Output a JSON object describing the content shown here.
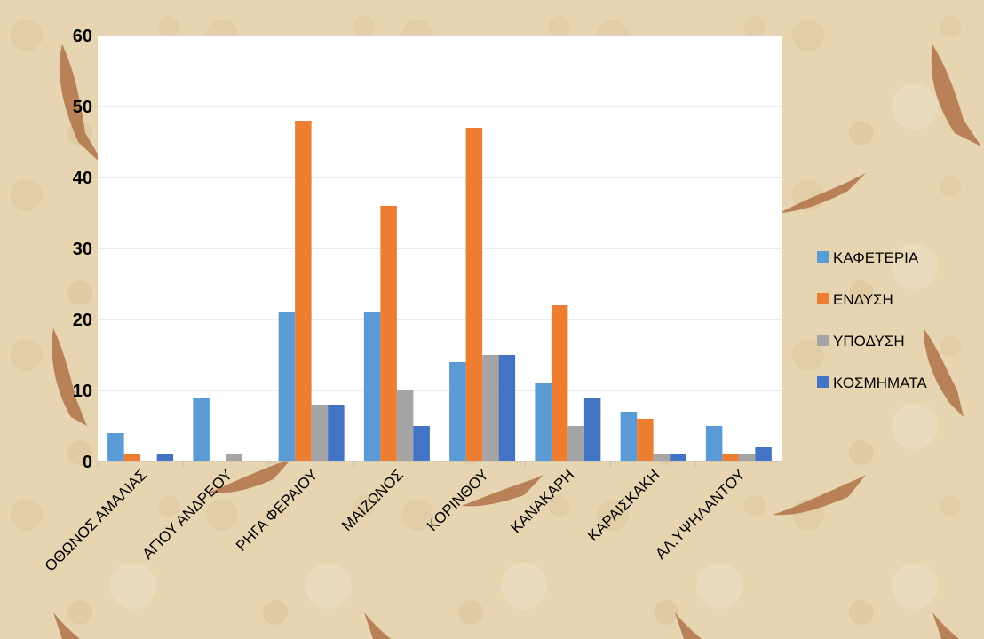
{
  "chart_data": {
    "type": "bar",
    "title": "",
    "xlabel": "",
    "ylabel": "",
    "ylim": [
      0,
      60
    ],
    "yticks": [
      0,
      10,
      20,
      30,
      40,
      50,
      60
    ],
    "grid": "horizontal",
    "legend_position": "right",
    "categories": [
      "ΟΘΩΝΟΣ ΑΜΑΛΙΑΣ",
      "ΑΓΙΟΥ ΑΝΔΡΕΟΥ",
      "ΡΗΓΑ ΦΕΡΑΙΟΥ",
      "ΜΑΙΖΩΝΟΣ",
      "ΚΟΡΙΝΘΟΥ",
      "ΚΑΝΑΚΑΡΗ",
      "ΚΑΡΑΙΣΚΑΚΗ",
      "ΑΛ.ΥΨΗΛΑΝΤΟΥ"
    ],
    "series": [
      {
        "name": "ΚΑΦΕΤΕΡΙΑ",
        "color": "#5b9bd5",
        "values": [
          4,
          9,
          21,
          21,
          14,
          11,
          7,
          5
        ]
      },
      {
        "name": "ΕΝΔΥΣΗ",
        "color": "#ed7d31",
        "values": [
          1,
          0,
          48,
          36,
          47,
          22,
          6,
          1
        ]
      },
      {
        "name": "ΥΠΟΔΥΣΗ",
        "color": "#a5a5a5",
        "values": [
          0,
          1,
          8,
          10,
          15,
          5,
          1,
          1
        ]
      },
      {
        "name": "ΚΟΣΜΗΜΑΤΑ",
        "color": "#4472c4",
        "values": [
          1,
          0,
          8,
          5,
          15,
          9,
          1,
          2
        ]
      }
    ]
  }
}
